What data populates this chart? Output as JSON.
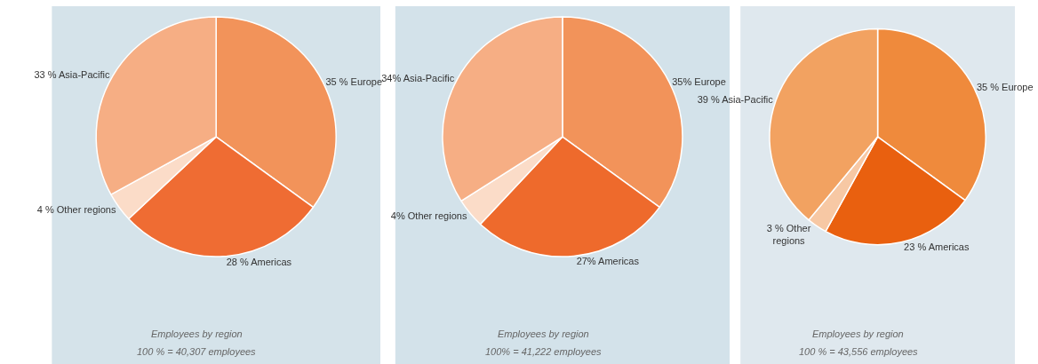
{
  "chart_data": [
    {
      "type": "pie",
      "categories": [
        "Europe",
        "Americas",
        "Other regions",
        "Asia-Pacific"
      ],
      "values": [
        35,
        28,
        4,
        33
      ],
      "value_labels": [
        "35 %",
        "28 %",
        "4 %",
        "33 %"
      ],
      "colors": [
        "#f2935a",
        "#ef6c33",
        "#fbdcc8",
        "#f6ae84"
      ],
      "annotations": [
        "Employees by region",
        "100 % = 40,307 employees"
      ]
    },
    {
      "type": "pie",
      "categories": [
        "Europe",
        "Americas",
        "Other regions",
        "Asia-Pacific"
      ],
      "values": [
        35,
        27,
        4,
        34
      ],
      "value_labels": [
        "35%",
        "27%",
        "4%",
        "34%"
      ],
      "colors": [
        "#f2935a",
        "#ee6a2c",
        "#fbdcc8",
        "#f6ae84"
      ],
      "annotations": [
        "Employees by region",
        "100% = 41,222 employees"
      ]
    },
    {
      "type": "pie",
      "categories": [
        "Europe",
        "Americas",
        "Other regions",
        "Asia-Pacific"
      ],
      "values": [
        35,
        23,
        3,
        39
      ],
      "value_labels": [
        "35 %",
        "23 %",
        "3 %",
        "39 %"
      ],
      "colors": [
        "#ef8a3c",
        "#e9600f",
        "#f7c8a4",
        "#f2a261"
      ],
      "annotations": [
        "Employees by region",
        "100 % = 43,556 employees"
      ]
    }
  ]
}
